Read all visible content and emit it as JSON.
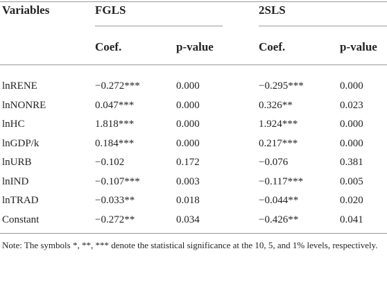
{
  "table": {
    "header": [
      "Variables",
      "FGLS",
      "2SLS"
    ],
    "subheader": [
      "Coef.",
      "p-value",
      "Coef.",
      "p-value"
    ],
    "rows": [
      [
        "lnRENE",
        "−0.272***",
        "0.000",
        "−0.295***",
        "0.000"
      ],
      [
        "lnNONRE",
        "0.047***",
        "0.000",
        "0.326**",
        "0.023"
      ],
      [
        "lnHC",
        "1.818***",
        "0.000",
        "1.924***",
        "0.000"
      ],
      [
        "lnGDP/k",
        "0.184***",
        "0.000",
        "0.217***",
        "0.000"
      ],
      [
        "lnURB",
        "−0.102",
        "0.172",
        "−0.076",
        "0.381"
      ],
      [
        "lnIND",
        "−0.107***",
        "0.003",
        "−0.117***",
        "0.005"
      ],
      [
        "lnTRAD",
        "−0.033**",
        "0.018",
        "−0.044**",
        "0.020"
      ],
      [
        "Constant",
        "−0.272**",
        "0.034",
        "−0.426**",
        "0.041"
      ]
    ]
  },
  "note": "Note: The symbols *, **, *** denote the statistical significance at the 10, 5, and 1% levels, respectively."
}
